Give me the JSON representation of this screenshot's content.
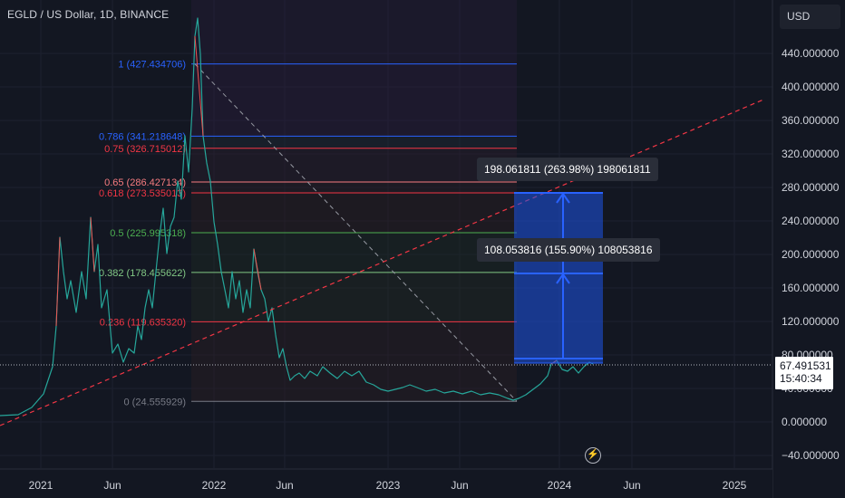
{
  "header": {
    "symbol_title": "EGLD / US Dollar, 1D, BINANCE",
    "currency_button": "USD"
  },
  "price_axis": {
    "ticks": [
      "440.000000",
      "400.000000",
      "360.000000",
      "320.000000",
      "280.000000",
      "240.000000",
      "200.000000",
      "160.000000",
      "120.000000",
      "80.000000",
      "40.000000",
      "0.000000",
      "−40.000000"
    ],
    "tick_values": [
      440,
      400,
      360,
      320,
      280,
      240,
      200,
      160,
      120,
      80,
      40,
      0,
      -40
    ]
  },
  "time_axis": {
    "labels": [
      "2021",
      "Jun",
      "2022",
      "Jun",
      "2023",
      "Jun",
      "2024",
      "Jun",
      "2025"
    ]
  },
  "current_price": {
    "price": "67.491531",
    "countdown": "15:40:34",
    "value": 67.491531
  },
  "fib_levels": [
    {
      "label": "1 (427.434706)",
      "value": 427.434706,
      "color": "#2962ff"
    },
    {
      "label": "0.786 (341.218648)",
      "value": 341.218648,
      "color": "#2962ff"
    },
    {
      "label": "0.75 (326.715012)",
      "value": 326.715012,
      "color": "#f23645"
    },
    {
      "label": "0.65 (286.427134)",
      "value": 286.427134,
      "color": "#f77c80"
    },
    {
      "label": "0.618 (273.535013)",
      "value": 273.535013,
      "color": "#f23645"
    },
    {
      "label": "0.5 (225.995318)",
      "value": 225.995318,
      "color": "#4caf50"
    },
    {
      "label": "0.382 (178.455622)",
      "value": 178.455622,
      "color": "#81c784"
    },
    {
      "label": "0.236 (119.635320)",
      "value": 119.63532,
      "color": "#f23645"
    },
    {
      "label": "0 (24.555929)",
      "value": 24.555929,
      "color": "#787b86"
    }
  ],
  "measurements": [
    {
      "label": "198.061811 (263.98%) 198061811"
    },
    {
      "label": "108.053816 (155.90%) 108053816"
    }
  ],
  "colors": {
    "background": "#131722",
    "grid": "#1c2030",
    "candles_up": "#26a69a",
    "candles_down": "#ef5350",
    "trendline": "#f23645",
    "measure_fill": "#1e53e5",
    "measure_line": "#2962ff"
  },
  "icons": {
    "replay": "lightning-icon"
  }
}
